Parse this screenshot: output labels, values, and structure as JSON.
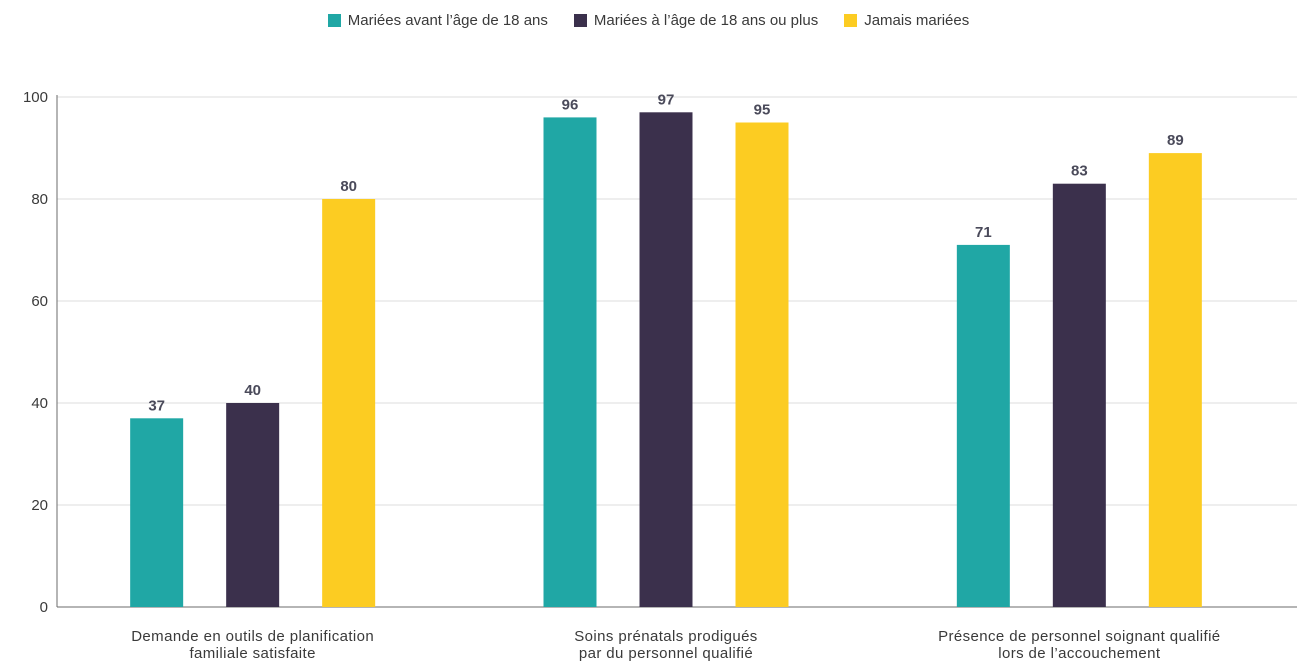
{
  "chart_data": {
    "type": "bar",
    "categories": [
      [
        "Demande en outils de planification",
        "familiale satisfaite"
      ],
      [
        "Soins prénatals prodigués",
        "par du personnel qualifié"
      ],
      [
        "Présence de personnel soignant qualifié",
        "lors de l’accouchement"
      ]
    ],
    "series": [
      {
        "name": "Mariées avant l’âge de 18 ans",
        "color": "#20A7A5",
        "values": [
          37,
          96,
          71
        ]
      },
      {
        "name": "Mariées à l’âge de 18 ans ou plus",
        "color": "#3B304C",
        "values": [
          40,
          97,
          83
        ]
      },
      {
        "name": "Jamais mariées",
        "color": "#FCCC22",
        "values": [
          80,
          95,
          89
        ]
      }
    ],
    "yticks": [
      "0",
      "20",
      "40",
      "60",
      "80",
      "100"
    ],
    "ylim": [
      0,
      100
    ],
    "grid": true,
    "legend_position": "top",
    "title": "",
    "xlabel": "",
    "ylabel": ""
  }
}
